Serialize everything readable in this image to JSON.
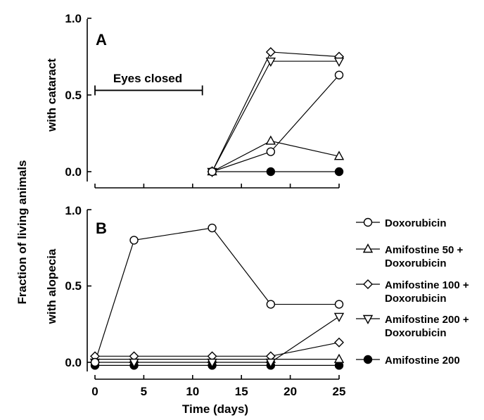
{
  "chart_data": {
    "type": "line",
    "shared_ylabel": "Fraction of living animals",
    "xlabel": "Time (days)",
    "xlim": [
      0,
      25
    ],
    "x_ticks": [
      "0",
      "5",
      "10",
      "15",
      "20",
      "25"
    ],
    "ylim": [
      0,
      1.0
    ],
    "y_ticks": [
      "0.0",
      "0.5",
      "1.0"
    ],
    "legend_position": "right",
    "legend": [
      {
        "id": "dox",
        "marker": "circle-open",
        "lines": [
          "Doxorubicin"
        ]
      },
      {
        "id": "a50",
        "marker": "triangle-up-open",
        "lines": [
          "Amifostine 50 +",
          "Doxorubicin"
        ]
      },
      {
        "id": "a100",
        "marker": "diamond-open",
        "lines": [
          "Amifostine 100 +",
          "Doxorubicin"
        ]
      },
      {
        "id": "a200",
        "marker": "triangle-down-open",
        "lines": [
          "Amifostine 200 +",
          "Doxorubicin"
        ]
      },
      {
        "id": "a200only",
        "marker": "circle-filled",
        "lines": [
          "Amifostine 200"
        ]
      }
    ],
    "panels": [
      {
        "label": "A",
        "ylabel": "with cataract",
        "annotation": {
          "text": "Eyes closed",
          "x_range": [
            0,
            11
          ],
          "y": 0.53
        },
        "series": [
          {
            "id": "dox",
            "x": [
              12,
              18,
              25
            ],
            "y": [
              0.0,
              0.13,
              0.63
            ]
          },
          {
            "id": "a50",
            "x": [
              12,
              18,
              25
            ],
            "y": [
              0.0,
              0.2,
              0.1
            ]
          },
          {
            "id": "a100",
            "x": [
              12,
              18,
              25
            ],
            "y": [
              0.0,
              0.78,
              0.75
            ]
          },
          {
            "id": "a200",
            "x": [
              12,
              18,
              25
            ],
            "y": [
              0.0,
              0.72,
              0.72
            ]
          },
          {
            "id": "a200only",
            "x": [
              12,
              18,
              25
            ],
            "y": [
              0.0,
              0.0,
              0.0
            ]
          }
        ]
      },
      {
        "label": "B",
        "ylabel": "with alopecia",
        "series": [
          {
            "id": "dox",
            "x": [
              0,
              4,
              12,
              18,
              25
            ],
            "y": [
              0.0,
              0.8,
              0.88,
              0.38,
              0.38
            ]
          },
          {
            "id": "a50",
            "x": [
              0,
              4,
              12,
              18,
              25
            ],
            "y": [
              0.02,
              0.02,
              0.02,
              0.02,
              0.02
            ]
          },
          {
            "id": "a100",
            "x": [
              0,
              4,
              12,
              18,
              25
            ],
            "y": [
              0.04,
              0.04,
              0.04,
              0.04,
              0.13
            ]
          },
          {
            "id": "a200",
            "x": [
              0,
              4,
              12,
              18,
              25
            ],
            "y": [
              0.0,
              0.0,
              0.0,
              0.0,
              0.3
            ]
          },
          {
            "id": "a200only",
            "x": [
              0,
              4,
              12,
              18,
              25
            ],
            "y": [
              -0.02,
              -0.02,
              -0.02,
              -0.02,
              -0.02
            ]
          }
        ]
      }
    ]
  }
}
